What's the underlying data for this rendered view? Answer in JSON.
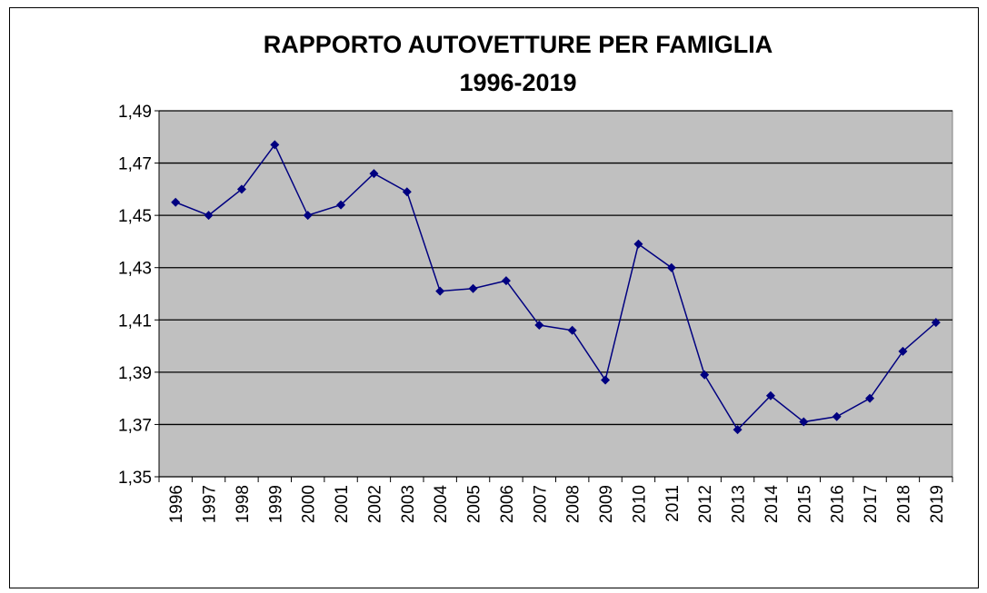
{
  "chart_data": {
    "type": "line",
    "title": "RAPPORTO AUTOVETTURE PER FAMIGLIA",
    "subtitle": "1996-2019",
    "categories": [
      "1996",
      "1997",
      "1998",
      "1999",
      "2000",
      "2001",
      "2002",
      "2003",
      "2004",
      "2005",
      "2006",
      "2007",
      "2008",
      "2009",
      "2010",
      "2011",
      "2012",
      "2013",
      "2014",
      "2015",
      "2016",
      "2017",
      "2018",
      "2019"
    ],
    "series": [
      {
        "name": "Rapporto autovetture per famiglia",
        "color": "#000080",
        "values": [
          1.455,
          1.45,
          1.46,
          1.477,
          1.45,
          1.454,
          1.466,
          1.459,
          1.421,
          1.422,
          1.425,
          1.408,
          1.406,
          1.387,
          1.439,
          1.43,
          1.389,
          1.368,
          1.381,
          1.371,
          1.373,
          1.38,
          1.398,
          1.409
        ]
      }
    ],
    "ylim": [
      1.35,
      1.49
    ],
    "yticks": [
      {
        "value": 1.35,
        "label": "1,35"
      },
      {
        "value": 1.37,
        "label": "1,37"
      },
      {
        "value": 1.39,
        "label": "1,39"
      },
      {
        "value": 1.41,
        "label": "1,41"
      },
      {
        "value": 1.43,
        "label": "1,43"
      },
      {
        "value": 1.45,
        "label": "1,45"
      },
      {
        "value": 1.47,
        "label": "1,47"
      },
      {
        "value": 1.49,
        "label": "1,49"
      }
    ],
    "grid": true,
    "plot_background": "#c0c0c0"
  }
}
